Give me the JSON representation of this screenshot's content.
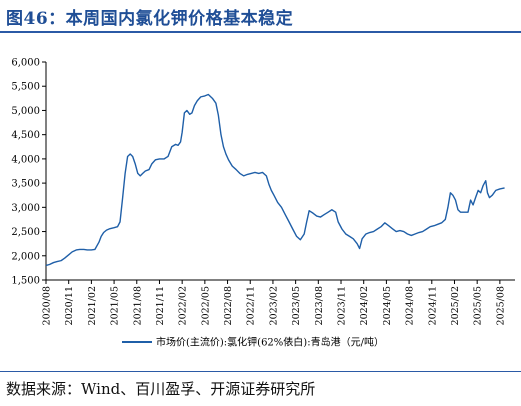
{
  "figure": {
    "title": "图46：本周国内氯化钾价格基本稳定",
    "source": "数据来源：Wind、百川盈孚、开源证券研究所"
  },
  "colors": {
    "title": "#1f4e96",
    "series": "#1f5fa8",
    "rule": "#2b5aa6"
  },
  "chart_data": {
    "type": "line",
    "title": "",
    "xlabel": "",
    "ylabel": "",
    "ylim": [
      1500,
      6000
    ],
    "yticks": [
      1500,
      2000,
      2500,
      3000,
      3500,
      4000,
      4500,
      5000,
      5500,
      6000
    ],
    "ytick_labels": [
      "1,500",
      "2,000",
      "2,500",
      "3,000",
      "3,500",
      "4,000",
      "4,500",
      "5,000",
      "5,500",
      "6,000"
    ],
    "xlim": [
      "2020-08",
      "2025-10"
    ],
    "xtick_labels": [
      "2020/08",
      "2020/11",
      "2021/02",
      "2021/05",
      "2021/08",
      "2021/11",
      "2022/02",
      "2022/05",
      "2022/08",
      "2022/11",
      "2023/02",
      "2023/05",
      "2023/08",
      "2023/11",
      "2024/02",
      "2024/05",
      "2024/08",
      "2024/11",
      "2025/02",
      "2025/05",
      "2025/08"
    ],
    "grid": false,
    "legend_position": "bottom-center",
    "series": [
      {
        "name": "市场价(主流价):氯化钾(62%俵白):青岛港（元/吨）",
        "points": [
          [
            "2020-08-01",
            1800
          ],
          [
            "2020-08-15",
            1820
          ],
          [
            "2020-09-01",
            1860
          ],
          [
            "2020-09-15",
            1880
          ],
          [
            "2020-10-01",
            1900
          ],
          [
            "2020-10-15",
            1950
          ],
          [
            "2020-11-01",
            2020
          ],
          [
            "2020-11-15",
            2080
          ],
          [
            "2020-12-01",
            2120
          ],
          [
            "2020-12-15",
            2130
          ],
          [
            "2021-01-01",
            2130
          ],
          [
            "2021-01-15",
            2120
          ],
          [
            "2021-02-01",
            2120
          ],
          [
            "2021-02-15",
            2130
          ],
          [
            "2021-03-01",
            2280
          ],
          [
            "2021-03-10",
            2400
          ],
          [
            "2021-03-20",
            2480
          ],
          [
            "2021-04-01",
            2530
          ],
          [
            "2021-04-15",
            2560
          ],
          [
            "2021-05-01",
            2580
          ],
          [
            "2021-05-15",
            2600
          ],
          [
            "2021-05-25",
            2700
          ],
          [
            "2021-06-05",
            3200
          ],
          [
            "2021-06-15",
            3700
          ],
          [
            "2021-06-25",
            4050
          ],
          [
            "2021-07-05",
            4100
          ],
          [
            "2021-07-15",
            4050
          ],
          [
            "2021-07-25",
            3900
          ],
          [
            "2021-08-05",
            3700
          ],
          [
            "2021-08-15",
            3650
          ],
          [
            "2021-08-25",
            3700
          ],
          [
            "2021-09-05",
            3750
          ],
          [
            "2021-09-20",
            3780
          ],
          [
            "2021-10-01",
            3900
          ],
          [
            "2021-10-15",
            3980
          ],
          [
            "2021-11-01",
            4000
          ],
          [
            "2021-11-20",
            4000
          ],
          [
            "2021-12-05",
            4050
          ],
          [
            "2021-12-20",
            4250
          ],
          [
            "2022-01-05",
            4300
          ],
          [
            "2022-01-15",
            4280
          ],
          [
            "2022-01-25",
            4350
          ],
          [
            "2022-02-01",
            4550
          ],
          [
            "2022-02-10",
            4950
          ],
          [
            "2022-02-20",
            5000
          ],
          [
            "2022-03-01",
            4920
          ],
          [
            "2022-03-10",
            4950
          ],
          [
            "2022-03-20",
            5100
          ],
          [
            "2022-04-01",
            5200
          ],
          [
            "2022-04-15",
            5280
          ],
          [
            "2022-05-01",
            5300
          ],
          [
            "2022-05-15",
            5330
          ],
          [
            "2022-06-01",
            5250
          ],
          [
            "2022-06-15",
            5150
          ],
          [
            "2022-06-25",
            4900
          ],
          [
            "2022-07-05",
            4500
          ],
          [
            "2022-07-15",
            4250
          ],
          [
            "2022-07-25",
            4100
          ],
          [
            "2022-08-05",
            3980
          ],
          [
            "2022-08-20",
            3850
          ],
          [
            "2022-09-05",
            3780
          ],
          [
            "2022-09-20",
            3700
          ],
          [
            "2022-10-05",
            3650
          ],
          [
            "2022-10-20",
            3680
          ],
          [
            "2022-11-05",
            3700
          ],
          [
            "2022-11-20",
            3720
          ],
          [
            "2022-12-05",
            3700
          ],
          [
            "2022-12-20",
            3720
          ],
          [
            "2023-01-05",
            3650
          ],
          [
            "2023-01-15",
            3480
          ],
          [
            "2023-01-25",
            3350
          ],
          [
            "2023-02-05",
            3250
          ],
          [
            "2023-02-20",
            3100
          ],
          [
            "2023-03-05",
            3000
          ],
          [
            "2023-03-20",
            2850
          ],
          [
            "2023-04-05",
            2700
          ],
          [
            "2023-04-20",
            2550
          ],
          [
            "2023-05-05",
            2400
          ],
          [
            "2023-05-20",
            2330
          ],
          [
            "2023-06-05",
            2450
          ],
          [
            "2023-06-15",
            2700
          ],
          [
            "2023-06-25",
            2930
          ],
          [
            "2023-07-10",
            2880
          ],
          [
            "2023-07-25",
            2820
          ],
          [
            "2023-08-10",
            2800
          ],
          [
            "2023-08-25",
            2850
          ],
          [
            "2023-09-10",
            2900
          ],
          [
            "2023-09-25",
            2950
          ],
          [
            "2023-10-10",
            2900
          ],
          [
            "2023-10-20",
            2700
          ],
          [
            "2023-11-05",
            2550
          ],
          [
            "2023-11-20",
            2450
          ],
          [
            "2023-12-05",
            2400
          ],
          [
            "2023-12-20",
            2350
          ],
          [
            "2024-01-05",
            2250
          ],
          [
            "2024-01-15",
            2150
          ],
          [
            "2024-01-25",
            2350
          ],
          [
            "2024-02-10",
            2450
          ],
          [
            "2024-02-25",
            2480
          ],
          [
            "2024-03-10",
            2500
          ],
          [
            "2024-03-25",
            2550
          ],
          [
            "2024-04-10",
            2600
          ],
          [
            "2024-04-25",
            2680
          ],
          [
            "2024-05-10",
            2620
          ],
          [
            "2024-05-25",
            2560
          ],
          [
            "2024-06-10",
            2500
          ],
          [
            "2024-06-25",
            2520
          ],
          [
            "2024-07-10",
            2500
          ],
          [
            "2024-07-25",
            2450
          ],
          [
            "2024-08-10",
            2420
          ],
          [
            "2024-08-25",
            2450
          ],
          [
            "2024-09-10",
            2480
          ],
          [
            "2024-09-25",
            2500
          ],
          [
            "2024-10-10",
            2550
          ],
          [
            "2024-10-25",
            2600
          ],
          [
            "2024-11-10",
            2620
          ],
          [
            "2024-11-25",
            2650
          ],
          [
            "2024-12-10",
            2680
          ],
          [
            "2024-12-25",
            2750
          ],
          [
            "2025-01-05",
            3000
          ],
          [
            "2025-01-15",
            3300
          ],
          [
            "2025-01-25",
            3250
          ],
          [
            "2025-02-05",
            3150
          ],
          [
            "2025-02-15",
            2950
          ],
          [
            "2025-02-25",
            2900
          ],
          [
            "2025-03-10",
            2900
          ],
          [
            "2025-03-25",
            2900
          ],
          [
            "2025-04-05",
            3150
          ],
          [
            "2025-04-15",
            3050
          ],
          [
            "2025-04-25",
            3200
          ],
          [
            "2025-05-05",
            3350
          ],
          [
            "2025-05-15",
            3300
          ],
          [
            "2025-05-25",
            3450
          ],
          [
            "2025-06-05",
            3550
          ],
          [
            "2025-06-12",
            3300
          ],
          [
            "2025-06-20",
            3200
          ],
          [
            "2025-07-01",
            3250
          ],
          [
            "2025-07-15",
            3350
          ],
          [
            "2025-08-01",
            3380
          ],
          [
            "2025-08-20",
            3400
          ]
        ]
      }
    ]
  }
}
